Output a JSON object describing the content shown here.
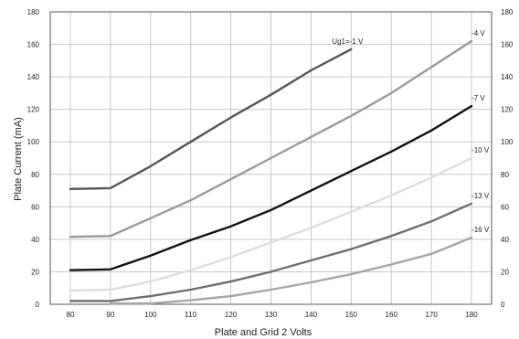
{
  "chart_data": {
    "type": "line",
    "xlabel": "Plate and Grid 2 Volts",
    "ylabel": "Plate Current (mA)",
    "xlim": [
      75,
      185
    ],
    "ylim": [
      0,
      180
    ],
    "xticks": [
      80,
      90,
      100,
      110,
      120,
      130,
      140,
      150,
      160,
      170,
      180
    ],
    "yticks": [
      0,
      20,
      40,
      60,
      80,
      100,
      120,
      140,
      160,
      180
    ],
    "grid": true,
    "y_tick_labels_both_sides": true,
    "series": [
      {
        "name": "Ug1=-1 V",
        "color": "#555555",
        "x": [
          80,
          90,
          100,
          110,
          120,
          130,
          140,
          150
        ],
        "y": [
          71,
          71.5,
          85,
          100,
          115,
          129,
          144,
          157
        ]
      },
      {
        "name": "-4 V",
        "color": "#999999",
        "x": [
          80,
          90,
          100,
          110,
          120,
          130,
          140,
          150,
          160,
          170,
          180
        ],
        "y": [
          41.5,
          42,
          53,
          64,
          77,
          90,
          103,
          116,
          130,
          146,
          162
        ]
      },
      {
        "name": "-7 V",
        "color": "#111111",
        "x": [
          80,
          90,
          100,
          110,
          120,
          130,
          140,
          150,
          160,
          170,
          180
        ],
        "y": [
          21,
          21.5,
          30,
          39.5,
          48,
          58,
          70,
          82,
          94,
          107,
          122
        ]
      },
      {
        "name": "-10 V",
        "color": "#dddddd",
        "x": [
          80,
          90,
          100,
          110,
          120,
          130,
          140,
          150,
          160,
          170,
          180
        ],
        "y": [
          8.5,
          9,
          14,
          21,
          29,
          38,
          47,
          57,
          67,
          78,
          90
        ]
      },
      {
        "name": "-13 V",
        "color": "#6e6e6e",
        "x": [
          80,
          90,
          100,
          110,
          120,
          130,
          140,
          150,
          160,
          170,
          180
        ],
        "y": [
          2,
          2,
          5,
          9,
          14,
          20,
          27,
          34,
          42,
          51,
          62
        ]
      },
      {
        "name": "-16 V",
        "color": "#a6a6a6",
        "x": [
          90,
          100,
          110,
          120,
          130,
          140,
          150,
          160,
          170,
          180
        ],
        "y": [
          0.5,
          0.5,
          2.5,
          5,
          9,
          13.5,
          18.5,
          24.5,
          31,
          41
        ]
      }
    ]
  }
}
